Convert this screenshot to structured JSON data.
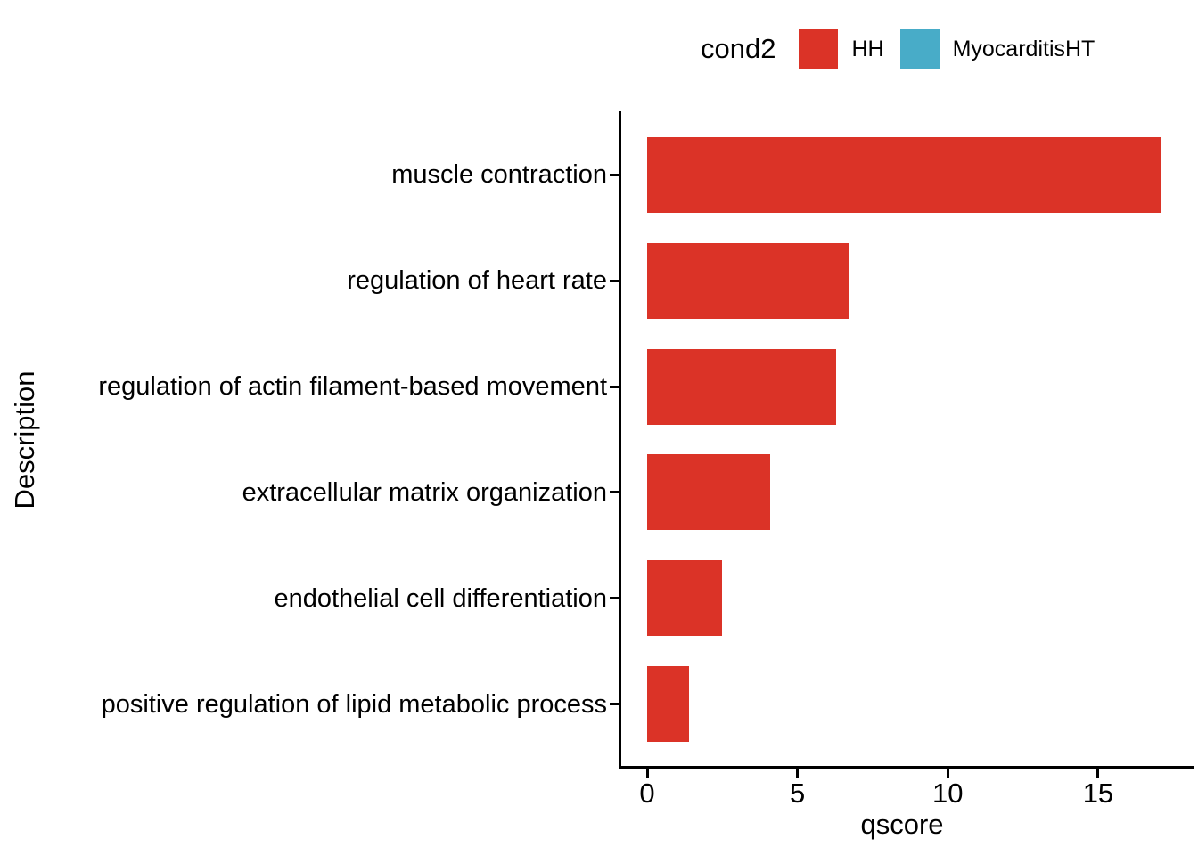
{
  "figure": {
    "background": "#ffffff",
    "text_color": "#000000",
    "axis_color": "#000000"
  },
  "legend": {
    "title": "cond2",
    "entries": [
      {
        "label": "HH",
        "color": "#DB3327"
      },
      {
        "label": "MyocarditisHT",
        "color": "#48ACC8"
      }
    ],
    "position": "top"
  },
  "chart_data": {
    "type": "bar",
    "orientation": "horizontal",
    "title": "",
    "xlabel": "qscore",
    "ylabel": "Description",
    "categories": [
      "muscle contraction",
      "regulation of heart rate",
      "regulation of actin filament-based movement",
      "extracellular matrix organization",
      "endothelial cell differentiation",
      "positive regulation of lipid metabolic process"
    ],
    "series": [
      {
        "name": "HH",
        "color": "#DB3327",
        "values": [
          17.1,
          6.7,
          6.3,
          4.1,
          2.5,
          1.4
        ]
      },
      {
        "name": "MyocarditisHT",
        "color": "#48ACC8",
        "values": [
          null,
          null,
          null,
          null,
          null,
          null
        ]
      }
    ],
    "x_ticks": [
      0,
      5,
      10,
      15
    ],
    "xlim": [
      0,
      18.2
    ],
    "grid": false,
    "legend_position": "top"
  }
}
